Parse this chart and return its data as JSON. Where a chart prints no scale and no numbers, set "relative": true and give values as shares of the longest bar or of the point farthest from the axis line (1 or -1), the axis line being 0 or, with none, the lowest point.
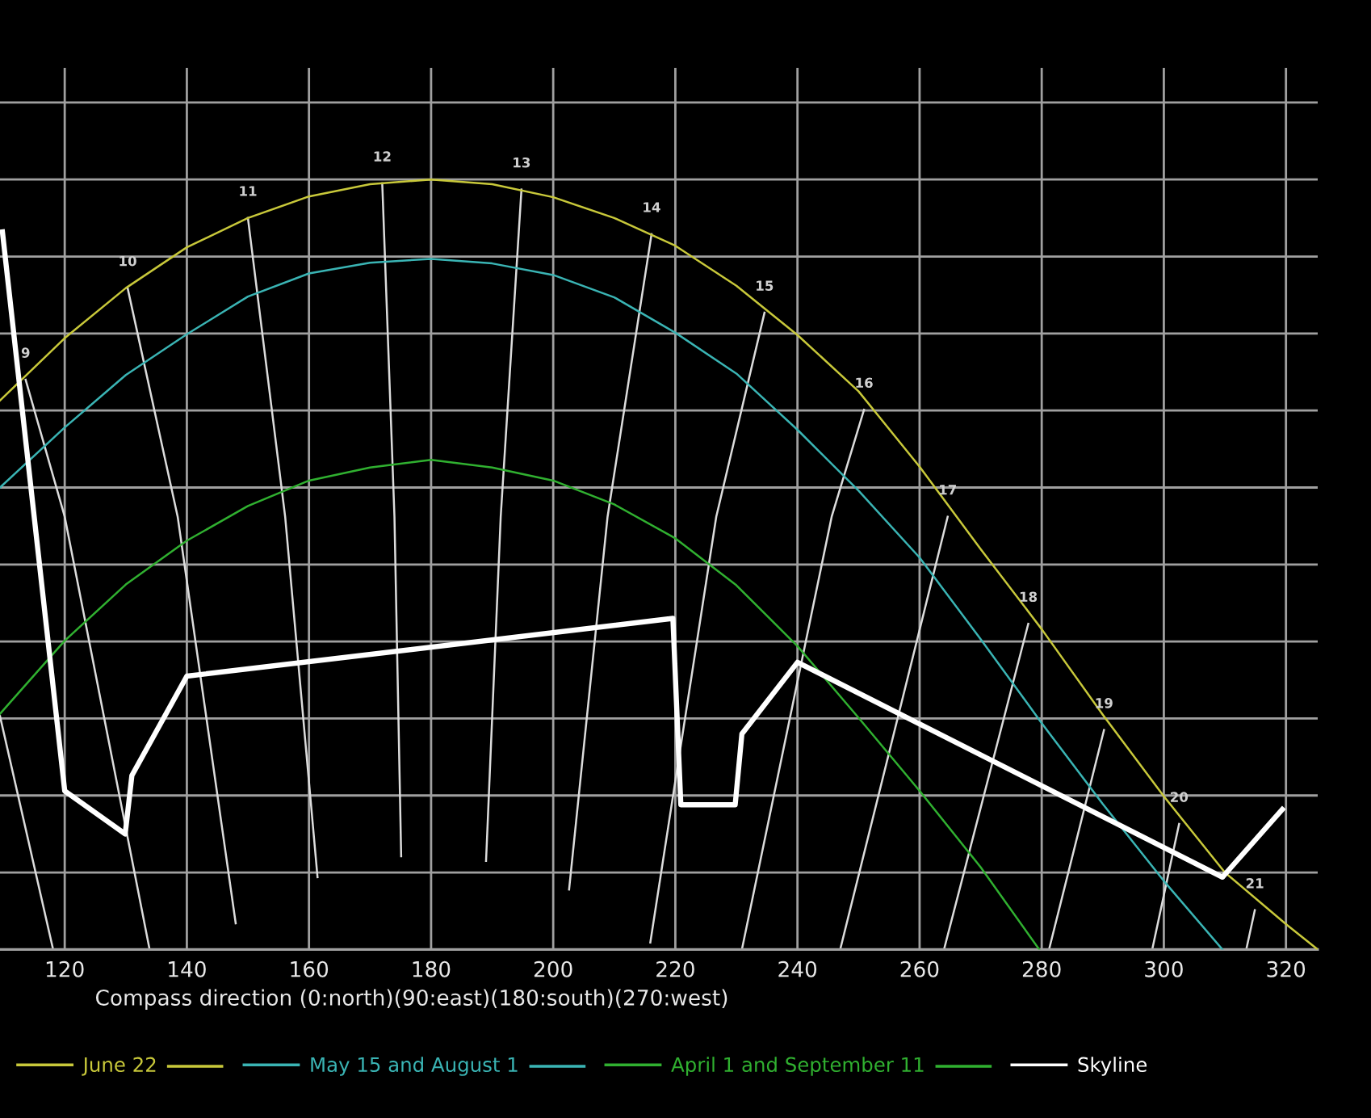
{
  "chart_data": {
    "type": "line",
    "relative": true,
    "xlabel": "Compass direction (0:north)(90:east)(180:south)(270:west)",
    "xlim": [
      109.4,
      325.2
    ],
    "xticks": [
      120,
      140,
      160,
      180,
      200,
      220,
      240,
      260,
      280,
      300,
      320
    ],
    "grid": true,
    "legend": "bottom",
    "series": [
      {
        "color": "#dcdcdc",
        "x": [
          109.4,
          118.1
        ],
        "values": [
          0.303,
          0
        ]
      },
      {
        "color": "#dcdcdc",
        "x": [
          113.6,
          120.0,
          133.9
        ],
        "values": [
          0.74,
          0.562,
          0
        ]
      },
      {
        "color": "#dcdcdc",
        "x": [
          130.3,
          138.5,
          148.0
        ],
        "values": [
          0.859,
          0.562,
          0.034
        ]
      },
      {
        "color": "#dcdcdc",
        "x": [
          150.0,
          156.1,
          161.4
        ],
        "values": [
          0.95,
          0.562,
          0.094
        ]
      },
      {
        "color": "#dcdcdc",
        "x": [
          172.0,
          174.0,
          175.1
        ],
        "values": [
          0.995,
          0.562,
          0.121
        ]
      },
      {
        "color": "#dcdcdc",
        "x": [
          194.8,
          191.4,
          189.0
        ],
        "values": [
          0.987,
          0.562,
          0.115
        ]
      },
      {
        "color": "#dcdcdc",
        "x": [
          216.1,
          208.9,
          202.6
        ],
        "values": [
          0.929,
          0.562,
          0.078
        ]
      },
      {
        "color": "#dcdcdc",
        "x": [
          234.6,
          226.7,
          215.9
        ],
        "values": [
          0.827,
          0.562,
          0.009
        ]
      },
      {
        "color": "#dcdcdc",
        "x": [
          250.9,
          245.6,
          230.9
        ],
        "values": [
          0.701,
          0.562,
          0
        ]
      },
      {
        "color": "#dcdcdc",
        "x": [
          264.6,
          247.0
        ],
        "values": [
          0.562,
          0
        ]
      },
      {
        "color": "#dcdcdc",
        "x": [
          277.8,
          264.0
        ],
        "values": [
          0.423,
          0
        ]
      },
      {
        "color": "#dcdcdc",
        "x": [
          290.2,
          281.2
        ],
        "values": [
          0.285,
          0
        ]
      },
      {
        "color": "#dcdcdc",
        "x": [
          302.5,
          298.1
        ],
        "values": [
          0.163,
          0
        ]
      },
      {
        "color": "#dcdcdc",
        "x": [
          314.9,
          313.5
        ],
        "values": [
          0.051,
          0
        ]
      },
      {
        "name": "June 22",
        "color": "#c8c83a",
        "x": [
          109.4,
          120,
          130,
          140,
          150,
          160,
          170,
          180,
          190,
          200,
          210,
          220,
          230,
          240,
          250,
          260,
          270,
          280,
          290,
          300,
          310,
          320,
          325.2
        ],
        "values": [
          0.713,
          0.794,
          0.859,
          0.912,
          0.95,
          0.978,
          0.994,
          1.0,
          0.994,
          0.977,
          0.95,
          0.914,
          0.862,
          0.798,
          0.725,
          0.627,
          0.52,
          0.416,
          0.305,
          0.199,
          0.1,
          0.033,
          0
        ]
      },
      {
        "name": "May 15 and August 1",
        "color": "#3ab4b4",
        "x": [
          109.4,
          120,
          130,
          140,
          150,
          160,
          170,
          180,
          190,
          200,
          210,
          220,
          230,
          240,
          250,
          260,
          270,
          280,
          290,
          300,
          309.6
        ],
        "values": [
          0.6,
          0.678,
          0.746,
          0.799,
          0.848,
          0.878,
          0.892,
          0.897,
          0.891,
          0.876,
          0.847,
          0.801,
          0.748,
          0.675,
          0.596,
          0.509,
          0.403,
          0.294,
          0.189,
          0.089,
          0
        ]
      },
      {
        "name": "April 1 and September 11",
        "color": "#30b030",
        "x": [
          109.4,
          120,
          130,
          140,
          150,
          160,
          170,
          180,
          190,
          200,
          210,
          220,
          230,
          240,
          250,
          260,
          270,
          279.6
        ],
        "values": [
          0.306,
          0.401,
          0.474,
          0.531,
          0.576,
          0.609,
          0.626,
          0.636,
          0.626,
          0.609,
          0.578,
          0.534,
          0.473,
          0.394,
          0.301,
          0.206,
          0.107,
          0
        ]
      },
      {
        "name": "Skyline",
        "color": "#ffffff",
        "x": [
          109.8,
          120,
          129.9,
          131,
          140,
          219.6,
          220.9,
          229.8,
          230.9,
          240,
          309.6,
          319.4
        ],
        "values": [
          0.932,
          0.206,
          0.15,
          0.226,
          0.355,
          0.43,
          0.188,
          0.188,
          0.28,
          0.373,
          0.094,
          0.182
        ]
      }
    ],
    "annotations": [
      {
        "text": "9",
        "x": 113.6,
        "y": 0.74
      },
      {
        "text": "10",
        "x": 130.3,
        "y": 0.859
      },
      {
        "text": "11",
        "x": 150.0,
        "y": 0.95
      },
      {
        "text": "12",
        "x": 172.0,
        "y": 0.995
      },
      {
        "text": "13",
        "x": 194.8,
        "y": 0.987
      },
      {
        "text": "14",
        "x": 216.1,
        "y": 0.929
      },
      {
        "text": "15",
        "x": 234.6,
        "y": 0.827
      },
      {
        "text": "16",
        "x": 250.9,
        "y": 0.701
      },
      {
        "text": "17",
        "x": 264.6,
        "y": 0.562
      },
      {
        "text": "18",
        "x": 277.8,
        "y": 0.423
      },
      {
        "text": "19",
        "x": 290.2,
        "y": 0.285
      },
      {
        "text": "20",
        "x": 302.5,
        "y": 0.163
      },
      {
        "text": "21",
        "x": 314.9,
        "y": 0.051
      }
    ]
  }
}
